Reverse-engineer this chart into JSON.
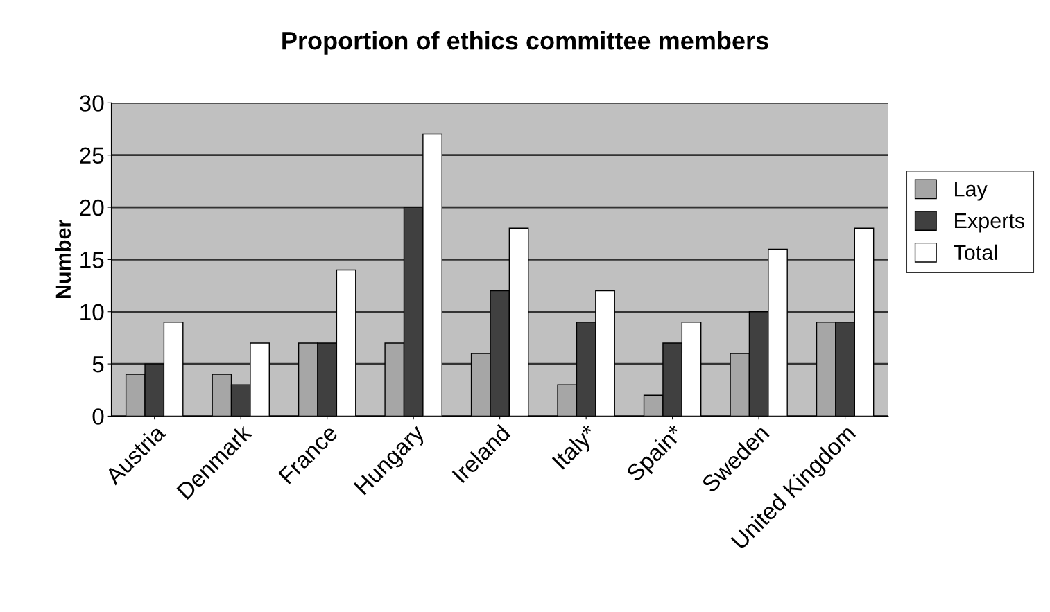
{
  "chart_data": {
    "type": "bar",
    "title": "Proportion of ethics committee members",
    "ylabel": "Number",
    "categories": [
      "Austria",
      "Denmark",
      "France",
      "Hungary",
      "Ireland",
      "Italy*",
      "Spain*",
      "Sweden",
      "United Kingdom"
    ],
    "series": [
      {
        "name": "Lay",
        "color": "#a6a6a6",
        "values": [
          4,
          4,
          7,
          7,
          6,
          3,
          2,
          6,
          9
        ]
      },
      {
        "name": "Experts",
        "color": "#404040",
        "values": [
          5,
          3,
          7,
          20,
          12,
          9,
          7,
          10,
          9
        ]
      },
      {
        "name": "Total",
        "color": "#ffffff",
        "values": [
          9,
          7,
          14,
          27,
          18,
          12,
          9,
          16,
          18
        ]
      }
    ],
    "ylim": [
      0,
      30
    ],
    "yticks": [
      0,
      5,
      10,
      15,
      20,
      25,
      30
    ],
    "grid": "y",
    "legend": "right"
  }
}
